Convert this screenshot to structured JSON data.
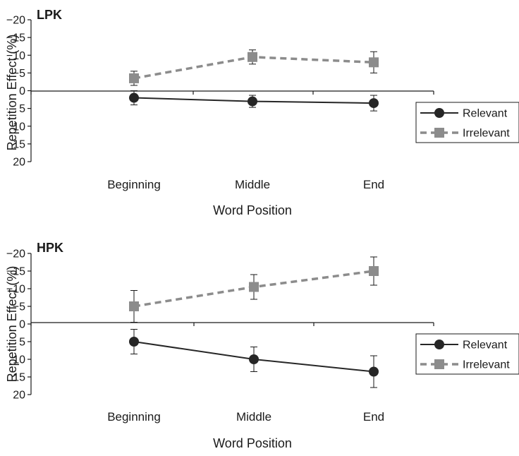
{
  "colors": {
    "relevant": "#262626",
    "irrelevant": "#8c8c8c",
    "axis": "#1a1a1a"
  },
  "chart_data": [
    {
      "type": "line",
      "title": "LPK",
      "xlabel": "Word Position",
      "ylabel": "Repetition Effect (%)",
      "categories": [
        "Beginning",
        "Middle",
        "End"
      ],
      "ylim": [
        20,
        -20
      ],
      "yticks": [
        -20,
        -15,
        -10,
        -5,
        0,
        5,
        10,
        15,
        20
      ],
      "ytick_labels": [
        "−20",
        "−15",
        "−10",
        "−5",
        "0",
        "5",
        "10",
        "15",
        "20"
      ],
      "legend_position": "right",
      "series": [
        {
          "name": "Relevant",
          "values": [
            2,
            3,
            3.5
          ],
          "error": [
            2,
            1.7,
            2.2
          ],
          "style": "solid",
          "marker": "circle"
        },
        {
          "name": "Irrelevant",
          "values": [
            -3.5,
            -9.5,
            -8
          ],
          "error": [
            2,
            2,
            3
          ],
          "style": "dashed",
          "marker": "square"
        }
      ]
    },
    {
      "type": "line",
      "title": "HPK",
      "xlabel": "Word Position",
      "ylabel": "Repetition Effect (%)",
      "categories": [
        "Beginning",
        "Middle",
        "End"
      ],
      "ylim": [
        20,
        -20
      ],
      "yticks": [
        -20,
        -15,
        -10,
        -5,
        0,
        5,
        10,
        15,
        20
      ],
      "ytick_labels": [
        "−20",
        "−15",
        "−10",
        "−5",
        "0",
        "5",
        "10",
        "15",
        "20"
      ],
      "legend_position": "right",
      "series": [
        {
          "name": "Relevant",
          "values": [
            5,
            10,
            13.5
          ],
          "error": [
            3.5,
            3.5,
            4.5
          ],
          "style": "solid",
          "marker": "circle"
        },
        {
          "name": "Irrelevant",
          "values": [
            -5,
            -10.5,
            -15
          ],
          "error": [
            4.5,
            3.5,
            4
          ],
          "style": "dashed",
          "marker": "square"
        }
      ]
    }
  ]
}
